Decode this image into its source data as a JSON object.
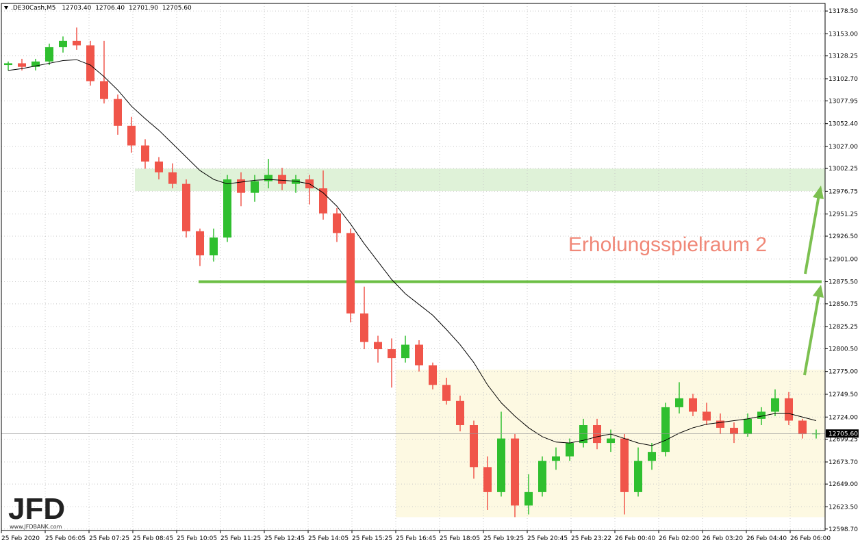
{
  "chart_data": {
    "type": "candlestick",
    "symbol": ".DE30Cash,M5",
    "header_values": [
      "12703.40",
      "12706.40",
      "12701.90",
      "12705.60"
    ],
    "annotation": "Erholungsspielraum 2",
    "logo": "JFD",
    "logo_url": "www.JFDBANK.com",
    "time_labels": [
      "25 Feb 2020",
      "25 Feb 06:05",
      "25 Feb 07:25",
      "25 Feb 08:45",
      "25 Feb 10:05",
      "25 Feb 11:25",
      "25 Feb 12:45",
      "25 Feb 14:05",
      "25 Feb 15:25",
      "25 Feb 16:45",
      "25 Feb 18:05",
      "25 Feb 19:25",
      "25 Feb 20:45",
      "25 Feb 23:22",
      "26 Feb 00:40",
      "26 Feb 02:00",
      "26 Feb 03:20",
      "26 Feb 04:40",
      "26 Feb 06:00"
    ],
    "open": [
      13118,
      13120,
      13116,
      13122,
      13138,
      13145,
      13140,
      13100,
      13080,
      13050,
      13028,
      13010,
      12998,
      12985,
      12932,
      12905,
      12925,
      12990,
      12975,
      12988,
      12995,
      12985,
      12990,
      12980,
      12952,
      12930,
      12840,
      12808,
      12800,
      12790,
      12805,
      12782,
      12760,
      12742,
      12715,
      12668,
      12640,
      12700,
      12625,
      12640,
      12675,
      12680,
      12695,
      12715,
      12695,
      12700,
      12640,
      12675,
      12685,
      12735,
      12745,
      12730,
      12720,
      12712,
      12705,
      12722,
      12730,
      12745,
      12720,
      12705
    ],
    "high": [
      13122,
      13125,
      13125,
      13142,
      13150,
      13160,
      13145,
      13145,
      13085,
      13060,
      13035,
      13015,
      13008,
      12990,
      12935,
      12935,
      12995,
      12998,
      12995,
      13013,
      13003,
      12995,
      12995,
      13000,
      12958,
      12935,
      12870,
      12815,
      12812,
      12815,
      12810,
      12785,
      12768,
      12748,
      12720,
      12680,
      12730,
      12705,
      12660,
      12680,
      12690,
      12700,
      12722,
      12722,
      12710,
      12705,
      12690,
      12695,
      12740,
      12763,
      12750,
      12740,
      12728,
      12718,
      12728,
      12735,
      12755,
      12752,
      12722,
      12710
    ],
    "low": [
      13112,
      13112,
      13112,
      13118,
      13132,
      13135,
      13095,
      13075,
      13040,
      13020,
      13002,
      12990,
      12980,
      12925,
      12893,
      12898,
      12920,
      12960,
      12965,
      12980,
      12978,
      12975,
      12962,
      12945,
      12920,
      12830,
      12800,
      12785,
      12757,
      12785,
      12775,
      12755,
      12738,
      12708,
      12655,
      12620,
      12635,
      12612,
      12615,
      12635,
      12665,
      12675,
      12690,
      12688,
      12685,
      12615,
      12635,
      12665,
      12680,
      12728,
      12725,
      12715,
      12705,
      12695,
      12702,
      12715,
      12725,
      12715,
      12700,
      12700
    ],
    "close": [
      13120,
      13116,
      13122,
      13138,
      13145,
      13140,
      13100,
      13080,
      13050,
      13028,
      13010,
      12998,
      12985,
      12932,
      12905,
      12925,
      12990,
      12975,
      12988,
      12995,
      12985,
      12990,
      12980,
      12952,
      12930,
      12840,
      12808,
      12800,
      12790,
      12805,
      12782,
      12760,
      12742,
      12715,
      12668,
      12640,
      12700,
      12625,
      12640,
      12675,
      12680,
      12695,
      12715,
      12695,
      12700,
      12640,
      12675,
      12685,
      12735,
      12745,
      12730,
      12720,
      12712,
      12705,
      12722,
      12730,
      12745,
      12720,
      12705,
      12705.6
    ],
    "ma": [
      13112,
      13114,
      13117,
      13120,
      13123,
      13124,
      13118,
      13105,
      13090,
      13072,
      13058,
      13045,
      13030,
      13015,
      13000,
      12990,
      12985,
      12987,
      12989,
      12990,
      12989,
      12988,
      12985,
      12975,
      12960,
      12940,
      12918,
      12898,
      12878,
      12862,
      12850,
      12838,
      12822,
      12805,
      12785,
      12760,
      12740,
      12725,
      12712,
      12702,
      12696,
      12695,
      12698,
      12702,
      12705,
      12700,
      12695,
      12692,
      12698,
      12706,
      12712,
      12716,
      12718,
      12720,
      12722,
      12725,
      12728,
      12728,
      12724,
      12720
    ],
    "up_color": "#2fbf2f",
    "down_color": "#f0554a",
    "ma_color": "#000000",
    "ylim": [
      12597,
      13187
    ],
    "yticks": [
      {
        "value": 13178.5,
        "label": "13178.50"
      },
      {
        "value": 13153,
        "label": "13153.00"
      },
      {
        "value": 13128.25,
        "label": "13128.25"
      },
      {
        "value": 13102.7,
        "label": "13102.70"
      },
      {
        "value": 13077.95,
        "label": "13077.95"
      },
      {
        "value": 13052.4,
        "label": "13052.40"
      },
      {
        "value": 13027,
        "label": "13027.00"
      },
      {
        "value": 13002.25,
        "label": "13002.25"
      },
      {
        "value": 12976.75,
        "label": "12976.75"
      },
      {
        "value": 12951.25,
        "label": "12951.25"
      },
      {
        "value": 12926.5,
        "label": "12926.50"
      },
      {
        "value": 12901,
        "label": "12901.00"
      },
      {
        "value": 12875.5,
        "label": "12875.50"
      },
      {
        "value": 12850.75,
        "label": "12850.75"
      },
      {
        "value": 12825.25,
        "label": "12825.25"
      },
      {
        "value": 12800.5,
        "label": "12800.50"
      },
      {
        "value": 12775,
        "label": "12775.00"
      },
      {
        "value": 12749.5,
        "label": "12749.50"
      },
      {
        "value": 12724,
        "label": "12724.00"
      },
      {
        "value": 12699.25,
        "label": "12699.25"
      },
      {
        "value": 12673.7,
        "label": "12673.70"
      },
      {
        "value": 12649,
        "label": "12649.00"
      },
      {
        "value": 12623.5,
        "label": "12623.50"
      },
      {
        "value": 12598.7,
        "label": "12598.70"
      }
    ],
    "last_price": {
      "value": 12705.6,
      "label": "12705.60"
    },
    "zones": [
      {
        "from": 12977,
        "to": 13002,
        "color": "#dff2d8"
      },
      {
        "from": 12612,
        "to": 12777,
        "color": "#fdf9e2"
      }
    ],
    "level": {
      "value": 12875.5,
      "color": "#6cbf45"
    },
    "grid": true
  }
}
